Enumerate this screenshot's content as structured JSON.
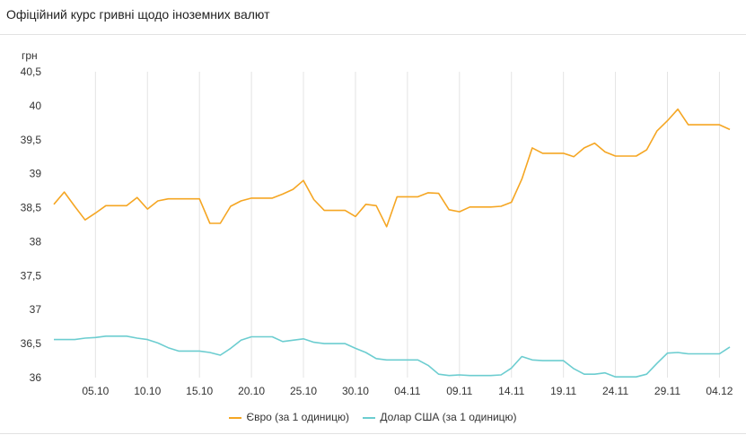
{
  "header": {
    "title": "Офіційний курс гривні щодо іноземних валют"
  },
  "chart_data": {
    "type": "line",
    "ylabel": "грн",
    "ylim": [
      36,
      40.5
    ],
    "yticks": [
      "40,5",
      "40",
      "39,5",
      "39",
      "38,5",
      "38",
      "37,5",
      "37",
      "36,5",
      "36"
    ],
    "ytick_values": [
      40.5,
      40,
      39.5,
      39,
      38.5,
      38,
      37.5,
      37,
      36.5,
      36
    ],
    "xticks": [
      "05.10",
      "10.10",
      "15.10",
      "20.10",
      "25.10",
      "30.10",
      "04.11",
      "09.11",
      "14.11",
      "19.11",
      "24.11",
      "29.11",
      "04.12"
    ],
    "grid": "vertical",
    "legend_position": "bottom",
    "series": [
      {
        "name": "Євро (за 1 одиницю)",
        "color": "#f5a623",
        "x": [
          "01.10",
          "02.10",
          "03.10",
          "04.10",
          "05.10",
          "06.10",
          "07.10",
          "08.10",
          "09.10",
          "10.10",
          "11.10",
          "12.10",
          "13.10",
          "14.10",
          "15.10",
          "16.10",
          "17.10",
          "18.10",
          "19.10",
          "20.10",
          "21.10",
          "22.10",
          "23.10",
          "24.10",
          "25.10",
          "26.10",
          "27.10",
          "28.10",
          "29.10",
          "30.10",
          "31.10",
          "01.11",
          "02.11",
          "03.11",
          "04.11",
          "05.11",
          "06.11",
          "07.11",
          "08.11",
          "09.11",
          "10.11",
          "11.11",
          "12.11",
          "13.11",
          "14.11",
          "15.11",
          "16.11",
          "17.11",
          "18.11",
          "19.11",
          "20.11",
          "21.11",
          "22.11",
          "23.11",
          "24.11",
          "25.11",
          "26.11",
          "27.11",
          "28.11",
          "29.11",
          "30.11",
          "01.12",
          "02.12",
          "03.12",
          "04.12",
          "05.12"
        ],
        "values": [
          38.55,
          38.73,
          38.52,
          38.32,
          38.42,
          38.53,
          38.53,
          38.53,
          38.65,
          38.48,
          38.6,
          38.63,
          38.63,
          38.63,
          38.63,
          38.27,
          38.27,
          38.52,
          38.6,
          38.64,
          38.64,
          38.64,
          38.7,
          38.77,
          38.9,
          38.62,
          38.46,
          38.46,
          38.46,
          38.37,
          38.55,
          38.53,
          38.22,
          38.66,
          38.66,
          38.66,
          38.72,
          38.71,
          38.47,
          38.44,
          38.51,
          38.51,
          38.51,
          38.52,
          38.58,
          38.92,
          39.38,
          39.3,
          39.3,
          39.3,
          39.25,
          39.38,
          39.45,
          39.32,
          39.26,
          39.26,
          39.26,
          39.35,
          39.63,
          39.78,
          39.95,
          39.72,
          39.72,
          39.72,
          39.72,
          39.65
        ]
      },
      {
        "name": "Долар США (за 1 одиницю)",
        "color": "#6ccdd0",
        "x": [
          "01.10",
          "02.10",
          "03.10",
          "04.10",
          "05.10",
          "06.10",
          "07.10",
          "08.10",
          "09.10",
          "10.10",
          "11.10",
          "12.10",
          "13.10",
          "14.10",
          "15.10",
          "16.10",
          "17.10",
          "18.10",
          "19.10",
          "20.10",
          "21.10",
          "22.10",
          "23.10",
          "24.10",
          "25.10",
          "26.10",
          "27.10",
          "28.10",
          "29.10",
          "30.10",
          "31.10",
          "01.11",
          "02.11",
          "03.11",
          "04.11",
          "05.11",
          "06.11",
          "07.11",
          "08.11",
          "09.11",
          "10.11",
          "11.11",
          "12.11",
          "13.11",
          "14.11",
          "15.11",
          "16.11",
          "17.11",
          "18.11",
          "19.11",
          "20.11",
          "21.11",
          "22.11",
          "23.11",
          "24.11",
          "25.11",
          "26.11",
          "27.11",
          "28.11",
          "29.11",
          "30.11",
          "01.12",
          "02.12",
          "03.12",
          "04.12",
          "05.12"
        ],
        "values": [
          36.56,
          36.56,
          36.56,
          36.58,
          36.59,
          36.61,
          36.61,
          36.61,
          36.58,
          36.56,
          36.51,
          36.44,
          36.39,
          36.39,
          36.39,
          36.37,
          36.33,
          36.43,
          36.55,
          36.6,
          36.6,
          36.6,
          36.53,
          36.55,
          36.57,
          36.52,
          36.5,
          36.5,
          36.5,
          36.43,
          36.37,
          36.28,
          36.26,
          36.26,
          36.26,
          36.26,
          36.18,
          36.05,
          36.03,
          36.04,
          36.03,
          36.03,
          36.03,
          36.04,
          36.14,
          36.31,
          36.26,
          36.25,
          36.25,
          36.25,
          36.13,
          36.05,
          36.05,
          36.07,
          36.01,
          36.01,
          36.01,
          36.05,
          36.21,
          36.36,
          36.37,
          36.35,
          36.35,
          36.35,
          36.35,
          36.45
        ]
      }
    ]
  }
}
